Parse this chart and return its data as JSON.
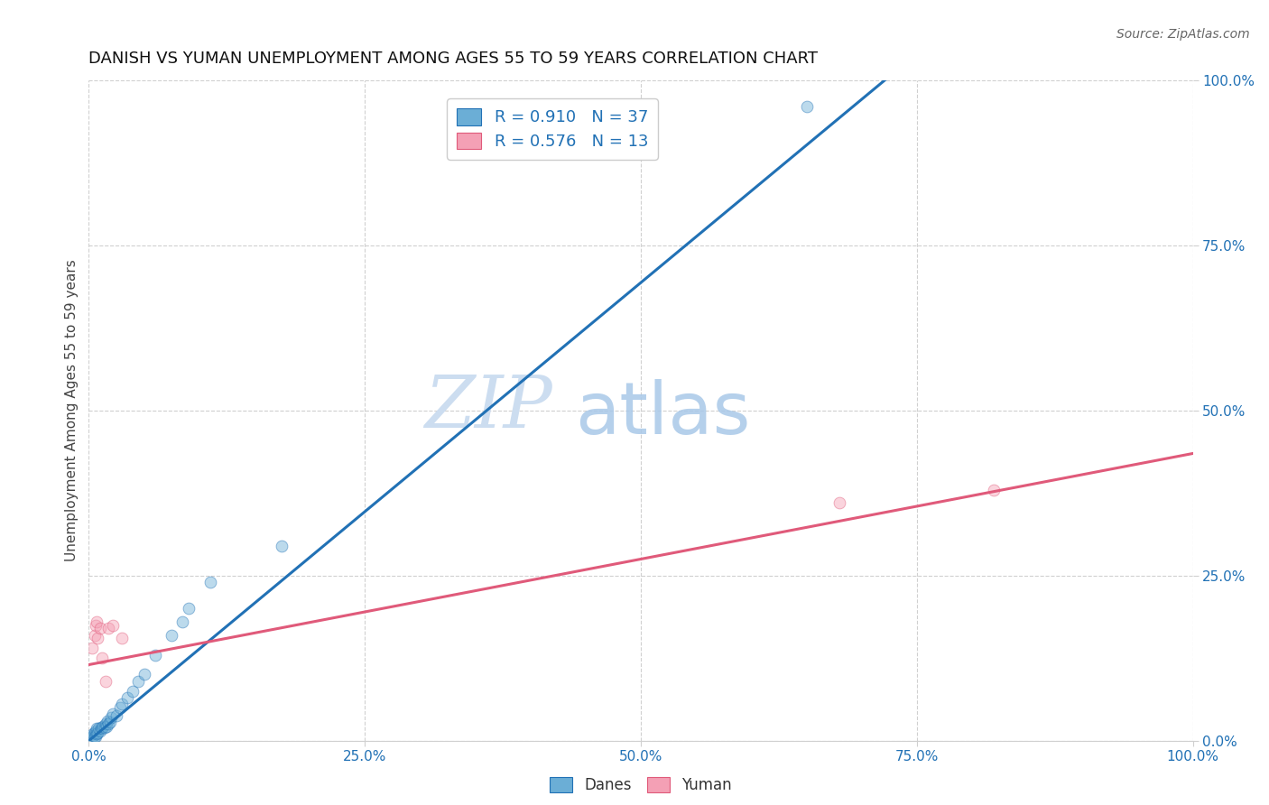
{
  "title": "DANISH VS YUMAN UNEMPLOYMENT AMONG AGES 55 TO 59 YEARS CORRELATION CHART",
  "source": "Source: ZipAtlas.com",
  "ylabel": "Unemployment Among Ages 55 to 59 years",
  "xlim": [
    0.0,
    1.0
  ],
  "ylim": [
    0.0,
    1.0
  ],
  "xticks": [
    0.0,
    0.25,
    0.5,
    0.75,
    1.0
  ],
  "yticks": [
    0.0,
    0.25,
    0.5,
    0.75,
    1.0
  ],
  "xtick_labels": [
    "0.0%",
    "25.0%",
    "50.0%",
    "75.0%",
    "100.0%"
  ],
  "ytick_labels": [
    "0.0%",
    "25.0%",
    "50.0%",
    "75.0%",
    "100.0%"
  ],
  "blue_scatter_x": [
    0.003,
    0.004,
    0.004,
    0.005,
    0.005,
    0.006,
    0.006,
    0.007,
    0.007,
    0.008,
    0.009,
    0.01,
    0.011,
    0.012,
    0.013,
    0.014,
    0.015,
    0.016,
    0.017,
    0.018,
    0.019,
    0.02,
    0.022,
    0.025,
    0.028,
    0.03,
    0.035,
    0.04,
    0.045,
    0.05,
    0.06,
    0.075,
    0.085,
    0.09,
    0.11,
    0.175,
    0.65
  ],
  "blue_scatter_y": [
    0.005,
    0.008,
    0.01,
    0.006,
    0.012,
    0.007,
    0.015,
    0.01,
    0.018,
    0.012,
    0.018,
    0.015,
    0.02,
    0.018,
    0.022,
    0.02,
    0.025,
    0.022,
    0.03,
    0.025,
    0.028,
    0.035,
    0.04,
    0.038,
    0.05,
    0.055,
    0.065,
    0.075,
    0.09,
    0.1,
    0.13,
    0.16,
    0.18,
    0.2,
    0.24,
    0.295,
    0.96
  ],
  "pink_scatter_x": [
    0.003,
    0.005,
    0.006,
    0.007,
    0.008,
    0.01,
    0.012,
    0.015,
    0.018,
    0.022,
    0.03,
    0.68,
    0.82
  ],
  "pink_scatter_y": [
    0.14,
    0.16,
    0.175,
    0.18,
    0.155,
    0.17,
    0.125,
    0.09,
    0.17,
    0.175,
    0.155,
    0.36,
    0.38
  ],
  "blue_line_x": [
    -0.01,
    0.735
  ],
  "blue_line_y": [
    -0.014,
    1.02
  ],
  "pink_line_x": [
    0.0,
    1.0
  ],
  "pink_line_y": [
    0.115,
    0.435
  ],
  "blue_color": "#6baed6",
  "blue_line_color": "#2171b5",
  "pink_color": "#f4a0b5",
  "pink_line_color": "#e05a7a",
  "legend_blue_label": "R = 0.910   N = 37",
  "legend_pink_label": "R = 0.576   N = 13",
  "legend_danes": "Danes",
  "legend_yuman": "Yuman",
  "watermark_zip": "ZIP",
  "watermark_atlas": "atlas",
  "background_color": "#ffffff",
  "grid_color": "#d0d0d0",
  "title_fontsize": 13,
  "axis_label_fontsize": 11,
  "tick_fontsize": 11,
  "scatter_size": 85,
  "scatter_alpha": 0.45,
  "line_width": 2.2
}
